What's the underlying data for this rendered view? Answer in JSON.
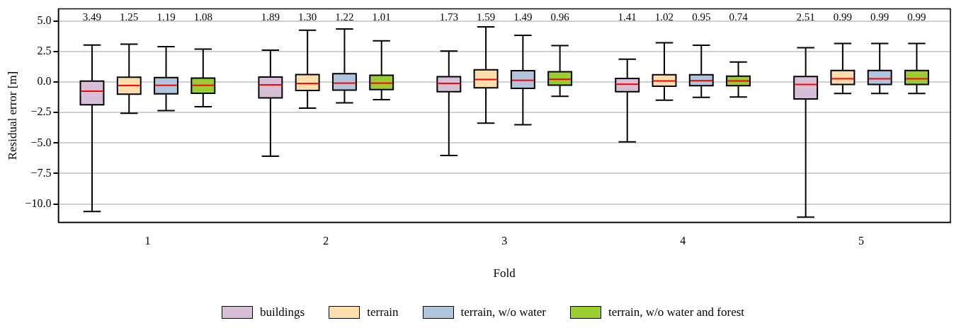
{
  "chart_data": {
    "type": "box",
    "xlabel": "Fold",
    "ylabel": "Residual error [m]",
    "categories": [
      "1",
      "2",
      "3",
      "4",
      "5"
    ],
    "ylim": [
      -11.5,
      6.0
    ],
    "yticks": [
      {
        "value": 5,
        "label": "5.0"
      },
      {
        "value": 2.5,
        "label": "2.5"
      },
      {
        "value": 0,
        "label": "0.0"
      },
      {
        "value": -2.5,
        "label": "−2.5"
      },
      {
        "value": -5,
        "label": "−5.0"
      },
      {
        "value": -7.5,
        "label": "−7.5"
      },
      {
        "value": -10,
        "label": "−10.0"
      }
    ],
    "grid": "y",
    "legend": "bottom",
    "series": [
      {
        "name": "buildings",
        "color": "#d8bfd8",
        "value_labels": [
          "3.49",
          "1.89",
          "1.73",
          "1.41",
          "2.51"
        ],
        "boxes": [
          {
            "low": -10.62,
            "q1": -1.87,
            "median": -0.75,
            "q3": 0.07,
            "high": 3.04
          },
          {
            "low": -6.09,
            "q1": -1.3,
            "median": -0.23,
            "q3": 0.41,
            "high": 2.62
          },
          {
            "low": -6.03,
            "q1": -0.8,
            "median": -0.11,
            "q3": 0.44,
            "high": 2.54
          },
          {
            "low": -4.91,
            "q1": -0.8,
            "median": -0.18,
            "q3": 0.3,
            "high": 1.87
          },
          {
            "low": -11.09,
            "q1": -1.39,
            "median": -0.2,
            "q3": 0.46,
            "high": 2.81
          }
        ]
      },
      {
        "name": "terrain",
        "color": "#ffdead",
        "value_labels": [
          "1.25",
          "1.30",
          "1.59",
          "1.02",
          "0.99"
        ],
        "boxes": [
          {
            "low": -2.56,
            "q1": -1.0,
            "median": -0.28,
            "q3": 0.39,
            "high": 3.1
          },
          {
            "low": -2.14,
            "q1": -0.69,
            "median": -0.12,
            "q3": 0.62,
            "high": 4.25
          },
          {
            "low": -3.38,
            "q1": -0.48,
            "median": 0.21,
            "q3": 1.01,
            "high": 4.52
          },
          {
            "low": -1.49,
            "q1": -0.34,
            "median": 0.09,
            "q3": 0.6,
            "high": 3.22
          },
          {
            "low": -0.94,
            "q1": -0.2,
            "median": 0.27,
            "q3": 0.94,
            "high": 3.17
          }
        ]
      },
      {
        "name": "terrain, w/o water",
        "color": "#b0c4de",
        "value_labels": [
          "1.19",
          "1.22",
          "1.49",
          "0.95",
          "0.99"
        ],
        "boxes": [
          {
            "low": -2.35,
            "q1": -0.96,
            "median": -0.27,
            "q3": 0.37,
            "high": 2.9
          },
          {
            "low": -1.71,
            "q1": -0.66,
            "median": -0.09,
            "q3": 0.68,
            "high": 4.36
          },
          {
            "low": -3.51,
            "q1": -0.52,
            "median": 0.14,
            "q3": 0.93,
            "high": 3.83
          },
          {
            "low": -1.26,
            "q1": -0.3,
            "median": 0.11,
            "q3": 0.6,
            "high": 3.02
          },
          {
            "low": -0.94,
            "q1": -0.2,
            "median": 0.27,
            "q3": 0.94,
            "high": 3.17
          }
        ]
      },
      {
        "name": "terrain, w/o water and forest",
        "color": "#9acd32",
        "value_labels": [
          "1.08",
          "1.01",
          "0.96",
          "0.74",
          "0.99"
        ],
        "boxes": [
          {
            "low": -2.03,
            "q1": -0.93,
            "median": -0.27,
            "q3": 0.32,
            "high": 2.7
          },
          {
            "low": -1.44,
            "q1": -0.62,
            "median": -0.09,
            "q3": 0.55,
            "high": 3.38
          },
          {
            "low": -1.17,
            "q1": -0.25,
            "median": 0.23,
            "q3": 0.84,
            "high": 2.99
          },
          {
            "low": -1.23,
            "q1": -0.3,
            "median": 0.09,
            "q3": 0.48,
            "high": 1.64
          },
          {
            "low": -0.94,
            "q1": -0.2,
            "median": 0.27,
            "q3": 0.94,
            "high": 3.17
          }
        ]
      }
    ]
  }
}
